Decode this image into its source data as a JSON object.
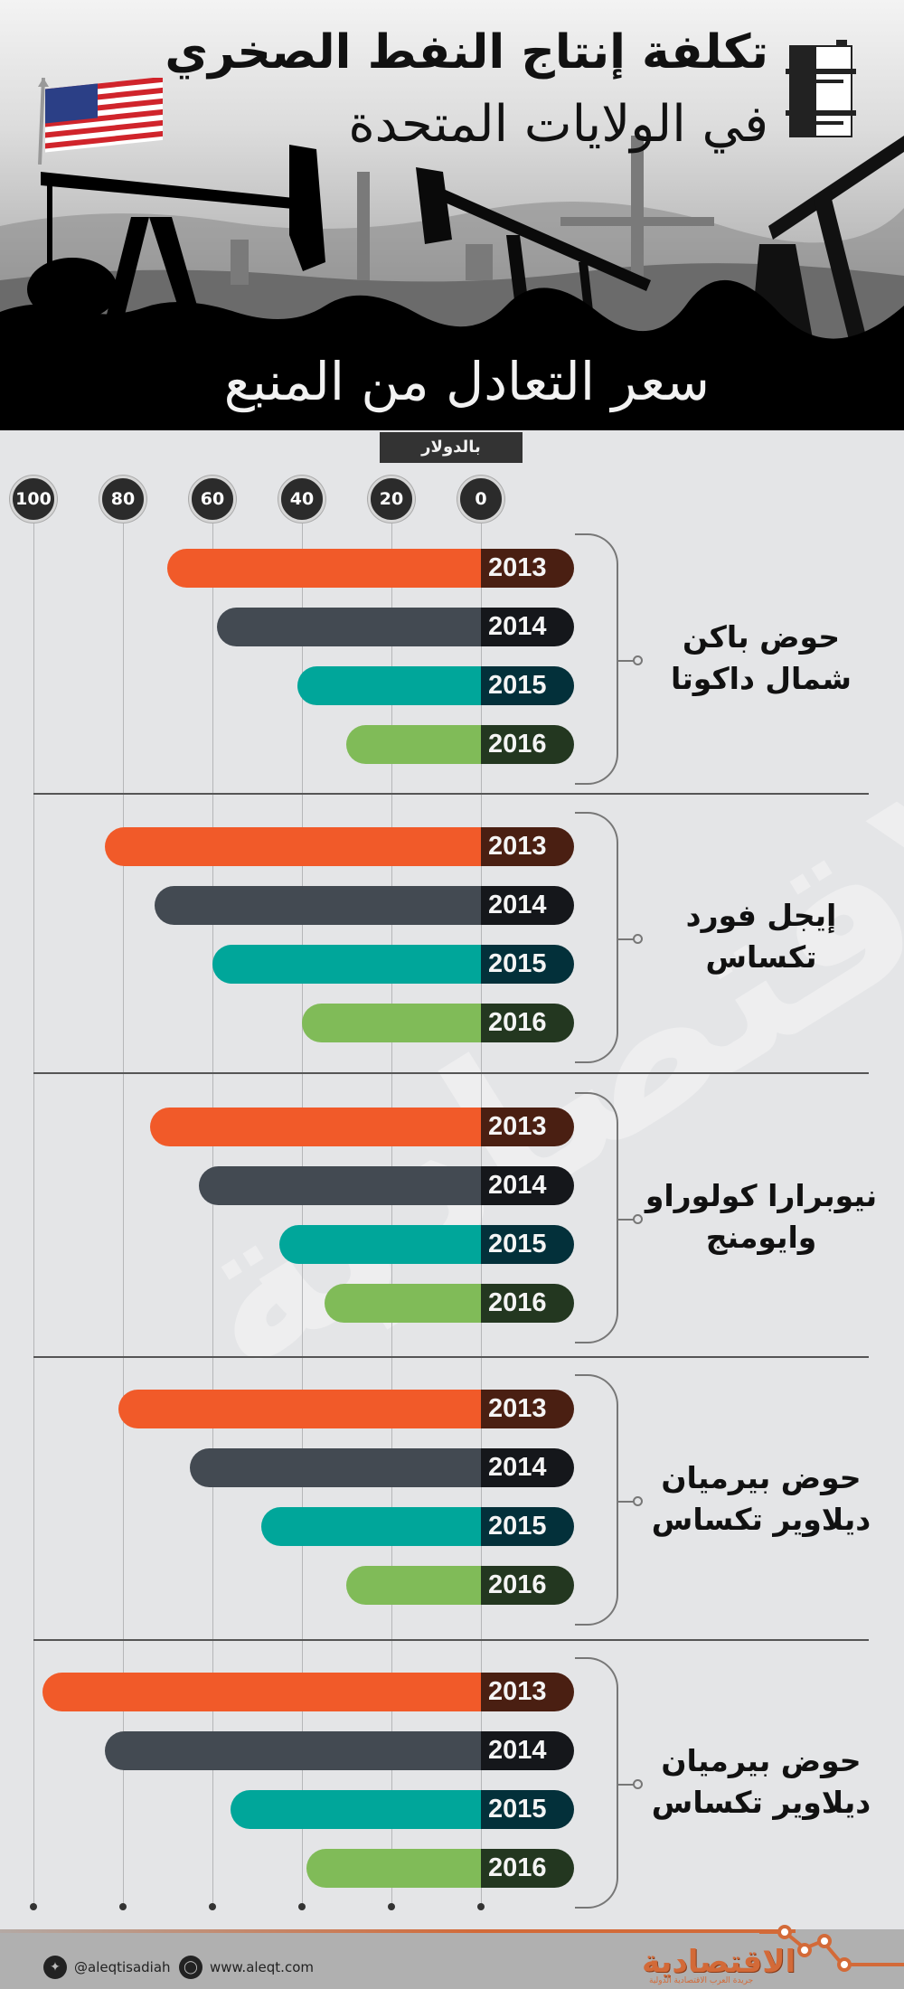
{
  "header": {
    "title_line1": "تكلفة إنتاج النفط الصخري",
    "title_line2": "في الولايات المتحدة",
    "subtitle": "سعر التعادل من المنبع",
    "icons": [
      "oil-barrel-icon",
      "us-flag-icon"
    ]
  },
  "unit_label": "بالدولار",
  "axis": {
    "ticks": [
      "100",
      "80",
      "60",
      "40",
      "20",
      "0"
    ]
  },
  "groups": [
    {
      "label_line1": "حوض باكن",
      "label_line2": "شمال داكوتا",
      "bars": [
        {
          "year": "2013",
          "value": 70
        },
        {
          "year": "2014",
          "value": 59
        },
        {
          "year": "2015",
          "value": 41
        },
        {
          "year": "2016",
          "value": 30
        }
      ]
    },
    {
      "label_line1": "إيجل فورد",
      "label_line2": "تكساس",
      "bars": [
        {
          "year": "2013",
          "value": 84
        },
        {
          "year": "2014",
          "value": 73
        },
        {
          "year": "2015",
          "value": 60
        },
        {
          "year": "2016",
          "value": 40
        }
      ]
    },
    {
      "label_line1": "نيوبرارا كولوراو",
      "label_line2": "وايومنج",
      "bars": [
        {
          "year": "2013",
          "value": 74
        },
        {
          "year": "2014",
          "value": 63
        },
        {
          "year": "2015",
          "value": 45
        },
        {
          "year": "2016",
          "value": 35
        }
      ]
    },
    {
      "label_line1": "حوض بيرميان",
      "label_line2": "ديلاوير تكساس",
      "bars": [
        {
          "year": "2013",
          "value": 81
        },
        {
          "year": "2014",
          "value": 65
        },
        {
          "year": "2015",
          "value": 49
        },
        {
          "year": "2016",
          "value": 30
        }
      ]
    },
    {
      "label_line1": "حوض بيرميان",
      "label_line2": "ديلاوير تكساس",
      "bars": [
        {
          "year": "2013",
          "value": 98
        },
        {
          "year": "2014",
          "value": 84
        },
        {
          "year": "2015",
          "value": 56
        },
        {
          "year": "2016",
          "value": 39
        }
      ]
    }
  ],
  "colors": {
    "2013": "#f15a29",
    "2013_cap": "#4a1f12",
    "2014": "#434a52",
    "2014_cap": "#15171b",
    "2015": "#00a69a",
    "2015_cap": "#03303a",
    "2016": "#80bb58",
    "2016_cap": "#233720",
    "background": "#e4e5e7",
    "accent": "#d36a38"
  },
  "watermark": "الاقتصادية",
  "footer": {
    "twitter": "@aleqtisadiah",
    "website": "www.aleqt.com",
    "logo": "الاقتصادية",
    "logo_tagline": "جريدة العرب الاقتصادية الدولية"
  },
  "chart_data": {
    "type": "bar",
    "orientation": "horizontal",
    "title": "تكلفة إنتاج النفط الصخري في الولايات المتحدة",
    "subtitle": "سعر التعادل من المنبع",
    "xlabel": "بالدولار",
    "ylabel": "",
    "xlim": [
      0,
      100
    ],
    "x_ticks": [
      0,
      20,
      40,
      60,
      80,
      100
    ],
    "grid": true,
    "legend": "years shown inside bar caps",
    "categories": [
      "حوض باكن شمال داكوتا",
      "إيجل فورد تكساس",
      "نيوبرارا كولوراو وايومنج",
      "حوض بيرميان ديلاوير تكساس",
      "حوض بيرميان ديلاوير تكساس"
    ],
    "series": [
      {
        "name": "2013",
        "values": [
          70,
          84,
          74,
          81,
          98
        ]
      },
      {
        "name": "2014",
        "values": [
          59,
          73,
          63,
          65,
          84
        ]
      },
      {
        "name": "2015",
        "values": [
          41,
          60,
          45,
          49,
          56
        ]
      },
      {
        "name": "2016",
        "values": [
          30,
          40,
          35,
          30,
          39
        ]
      }
    ]
  }
}
